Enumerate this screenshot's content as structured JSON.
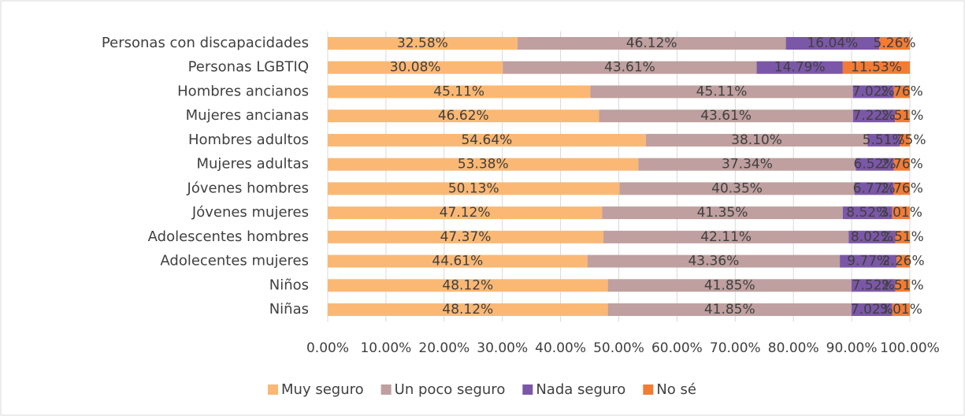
{
  "chart_data": {
    "type": "stacked_barh",
    "categories": [
      "Personas con discapacidades",
      "Personas LGBTIQ",
      "Hombres ancianos",
      "Mujeres ancianas",
      "Hombres adultos",
      "Mujeres adultas",
      "Jóvenes hombres",
      "Jóvenes mujeres",
      "Adolescentes hombres",
      "Adolecentes mujeres",
      "Niños",
      "Niñas"
    ],
    "series": [
      {
        "name": "Muy seguro",
        "color": "#fbb874",
        "values": [
          32.58,
          30.08,
          45.11,
          46.62,
          54.64,
          53.38,
          50.13,
          47.12,
          47.37,
          44.61,
          48.12,
          48.12
        ],
        "value_labels": [
          "32.58%",
          "30.08%",
          "45.11%",
          "46.62%",
          "54.64%",
          "53.38%",
          "50.13%",
          "47.12%",
          "47.37%",
          "44.61%",
          "48.12%",
          "48.12%"
        ]
      },
      {
        "name": "Un poco seguro",
        "color": "#bf9f9f",
        "values": [
          46.12,
          43.61,
          45.11,
          43.61,
          38.1,
          37.34,
          40.35,
          41.35,
          42.11,
          43.36,
          41.85,
          41.85
        ],
        "value_labels": [
          "46.12%",
          "43.61%",
          "45.11%",
          "43.61%",
          "38.10%",
          "37.34%",
          "40.35%",
          "41.35%",
          "42.11%",
          "43.36%",
          "41.85%",
          "41.85%"
        ]
      },
      {
        "name": "Nada seguro",
        "color": "#7b57a7",
        "values": [
          16.04,
          14.79,
          7.02,
          7.22,
          5.51,
          6.52,
          6.77,
          8.52,
          8.02,
          9.77,
          7.52,
          7.02
        ],
        "value_labels": [
          "16.04%",
          "14.79%",
          "7.02%",
          "7.22%",
          "5.51%",
          "6.52%",
          "6.77%",
          "8.52%",
          "8.02%",
          "9.77%",
          "7.52%",
          "7.02%"
        ]
      },
      {
        "name": "No sé",
        "color": "#f27c35",
        "values": [
          5.26,
          11.53,
          2.76,
          2.51,
          1.75,
          2.76,
          2.76,
          3.01,
          2.51,
          2.26,
          2.51,
          3.01
        ],
        "value_labels": [
          "5.26%",
          "11.53%",
          "2.76%",
          "2.51%",
          "1.75%",
          "2.76%",
          "2.76%",
          "3.01%",
          "2.51%",
          "2.26%",
          "2.51%",
          "3.01%"
        ]
      }
    ],
    "xlim": [
      0,
      100
    ],
    "xticks": [
      {
        "value": 0,
        "label": "0.00%"
      },
      {
        "value": 10,
        "label": "10.00%"
      },
      {
        "value": 20,
        "label": "20.00%"
      },
      {
        "value": 30,
        "label": "30.00%"
      },
      {
        "value": 40,
        "label": "40.00%"
      },
      {
        "value": 50,
        "label": "50.00%"
      },
      {
        "value": 60,
        "label": "60.00%"
      },
      {
        "value": 70,
        "label": "70.00%"
      },
      {
        "value": 80,
        "label": "80.00%"
      },
      {
        "value": 90,
        "label": "90.00%"
      },
      {
        "value": 100,
        "label": "100.00%"
      }
    ],
    "grid": true,
    "legend": "bottom"
  }
}
